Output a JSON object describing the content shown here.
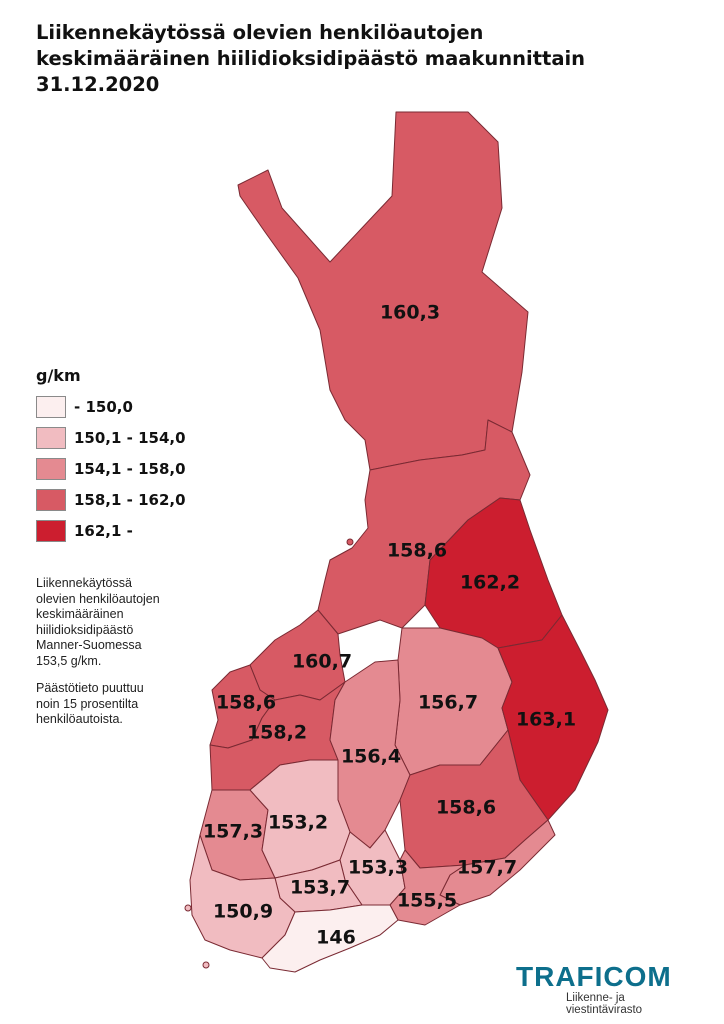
{
  "title": {
    "line1": "Liikennekäytössä olevien henkilöautojen",
    "line2": "keskimääräinen hiilidioksidipäästö maakunnittain",
    "line3": "31.12.2020"
  },
  "legend": {
    "unit": "g/km",
    "classes": [
      {
        "label": "- 150,0",
        "color": "#fcefef"
      },
      {
        "label": "150,1 - 154,0",
        "color": "#f1bcc1"
      },
      {
        "label": "154,1 - 158,0",
        "color": "#e48a91"
      },
      {
        "label": "158,1 - 162,0",
        "color": "#d75a64"
      },
      {
        "label": "162,1 -",
        "color": "#cc1e2f"
      }
    ]
  },
  "note": {
    "paragraph1": "Liikennekäytössä\nolevien henkilöautojen\nkeskimääräinen\nhiilidioksidipäästö\nManner-Suomessa\n153,5 g/km.",
    "paragraph2": "Päästötieto puuttuu\nnoin 15 prosentilta\nhenkilöautoista."
  },
  "regions": [
    {
      "value": "160,3",
      "class": 3
    },
    {
      "value": "158,6",
      "class": 3
    },
    {
      "value": "162,2",
      "class": 4
    },
    {
      "value": "160,7",
      "class": 3
    },
    {
      "value": "158,6",
      "class": 3
    },
    {
      "value": "158,2",
      "class": 3
    },
    {
      "value": "156,7",
      "class": 2
    },
    {
      "value": "163,1",
      "class": 4
    },
    {
      "value": "156,4",
      "class": 2
    },
    {
      "value": "158,6",
      "class": 3
    },
    {
      "value": "157,3",
      "class": 2
    },
    {
      "value": "153,2",
      "class": 1
    },
    {
      "value": "153,3",
      "class": 1
    },
    {
      "value": "157,7",
      "class": 2
    },
    {
      "value": "153,7",
      "class": 1
    },
    {
      "value": "155,5",
      "class": 2
    },
    {
      "value": "150,9",
      "class": 1
    },
    {
      "value": "146",
      "class": 0
    }
  ],
  "logo": {
    "name": "TRAFICOM",
    "subtitle": "Liikenne- ja viestintävirasto",
    "color": "#0d6f8c",
    "accent": "#1e9b4b"
  }
}
